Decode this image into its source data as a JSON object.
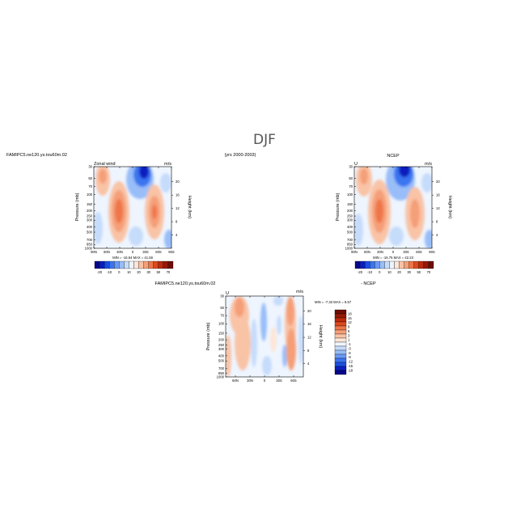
{
  "figure": {
    "title": "DJF",
    "case_label": "FAMIPC5.ne120.ys.tou60m.02",
    "years_label": "(yrs 2000-2003)",
    "diff_case_label": "FAMIPC5.ne120.ys.tou60m.02",
    "diff_obs_label": "- NCEP"
  },
  "chart_data": [
    {
      "type": "heatmap",
      "id": "model",
      "title_left": "Zonal wind",
      "title_right": "m/s",
      "ylabel": "Pressure (mb)",
      "y2label": "Height (km)",
      "x_ticks": [
        "90N",
        "60N",
        "30N",
        "0",
        "30S",
        "60S",
        "90S"
      ],
      "y_ticks": [
        "30",
        "50",
        "70",
        "100",
        "150",
        "200",
        "250",
        "300",
        "400",
        "500",
        "700",
        "850",
        "1000"
      ],
      "y2_ticks": [
        "20",
        "16",
        "12",
        "8",
        "4"
      ],
      "stats": "MIN = -16.64   MAX = 41.56",
      "min": -16.64,
      "max": 41.56,
      "colorbar_ticks": [
        "-20",
        "-10",
        "0",
        "10",
        "20",
        "30",
        "50",
        "70"
      ]
    },
    {
      "type": "heatmap",
      "id": "obs",
      "title_left": "U",
      "title_center": "NCEP",
      "title_right": "m/s",
      "ylabel": "Pressure (mb)",
      "y2label": "Height (km)",
      "x_ticks": [
        "90N",
        "60N",
        "30N",
        "0",
        "30S",
        "60S",
        "90S"
      ],
      "y_ticks": [
        "30",
        "50",
        "70",
        "100",
        "150",
        "200",
        "250",
        "300",
        "400",
        "500",
        "700",
        "850",
        "1000"
      ],
      "y2_ticks": [
        "20",
        "16",
        "12",
        "8",
        "4"
      ],
      "stats": "MIN = -16.75   MAX = 42.23",
      "min": -16.75,
      "max": 42.23,
      "colorbar_ticks": [
        "-20",
        "-10",
        "0",
        "10",
        "20",
        "30",
        "50",
        "70"
      ]
    },
    {
      "type": "heatmap",
      "id": "diff",
      "title_left": "U",
      "title_right": "m/s",
      "ylabel": "Pressure (mb)",
      "y2label": "Height (km)",
      "x_ticks": [
        "60N",
        "30N",
        "0",
        "30S",
        "60S"
      ],
      "y_ticks": [
        "30",
        "50",
        "70",
        "100",
        "150",
        "200",
        "250",
        "300",
        "400",
        "500",
        "700",
        "850",
        "1000"
      ],
      "y2_ticks": [
        "20",
        "16",
        "12",
        "8",
        "4"
      ],
      "stats": "MIN =  -7.33   MAX =   8.57",
      "min": -7.33,
      "max": 8.57,
      "colorbar_ticks": [
        "18",
        "15",
        "12",
        "9",
        "6",
        "3",
        "1",
        "-1",
        "-3",
        "-6",
        "-9",
        "-12",
        "-15",
        "-18"
      ]
    }
  ],
  "colors": {
    "diverging": [
      "#08068a",
      "#0a1fbf",
      "#1a4fe0",
      "#3b74f0",
      "#6a99f5",
      "#98bdf8",
      "#c6dcfb",
      "#eef5ff",
      "#fde6d8",
      "#f9c3a6",
      "#f59f78",
      "#ee7648",
      "#dd4a1e",
      "#bd2b0c",
      "#951a06",
      "#6f0d02"
    ]
  }
}
